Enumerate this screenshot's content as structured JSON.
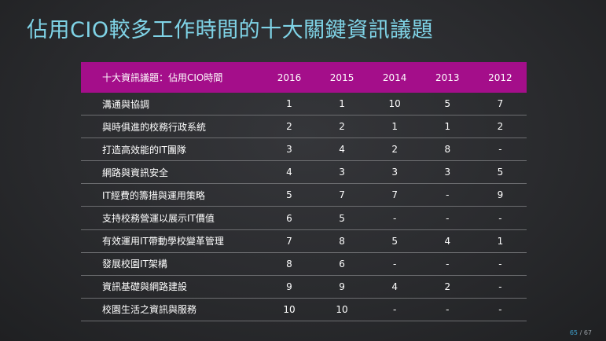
{
  "title": "佔用CIO較多工作時間的十大關鍵資訊議題",
  "table": {
    "header": [
      "十大資訊議題：佔用CIO時間",
      "2016",
      "2015",
      "2014",
      "2013",
      "2012"
    ],
    "rows": [
      [
        "溝通與協調",
        "1",
        "1",
        "10",
        "5",
        "7"
      ],
      [
        "與時俱進的校務行政系統",
        "2",
        "2",
        "1",
        "1",
        "2"
      ],
      [
        "打造高效能的IT團隊",
        "3",
        "4",
        "2",
        "8",
        "-"
      ],
      [
        "網路與資訊安全",
        "4",
        "3",
        "3",
        "3",
        "5"
      ],
      [
        "IT經費的籌措與運用策略",
        "5",
        "7",
        "7",
        "-",
        "9"
      ],
      [
        "支持校務營運以展示IT價值",
        "6",
        "5",
        "-",
        "-",
        "-"
      ],
      [
        "有效運用IT帶動學校變革管理",
        "7",
        "8",
        "5",
        "4",
        "1"
      ],
      [
        "發展校園IT架構",
        "8",
        "6",
        "-",
        "-",
        "-"
      ],
      [
        "資訊基礎與網路建設",
        "9",
        "9",
        "4",
        "2",
        "-"
      ],
      [
        "校園生活之資訊與服務",
        "10",
        "10",
        "-",
        "-",
        "-"
      ]
    ]
  },
  "page": {
    "current": "65",
    "separator": " / ",
    "total": "67"
  }
}
